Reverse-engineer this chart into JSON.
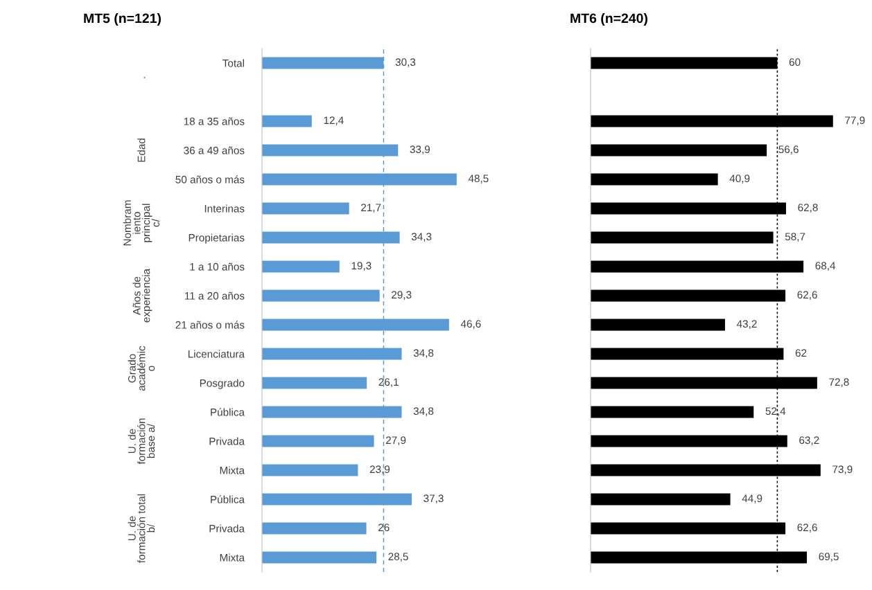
{
  "chart_data": [
    {
      "type": "bar",
      "orientation": "horizontal",
      "title": "MT5 (n=121)",
      "categories": [
        "Total",
        null,
        "18 a 35 años",
        "36 a 49 años",
        "50 años o más",
        "Interinas",
        "Propietarias",
        "1 a 10 años",
        "11 a 20 años",
        "21 años o más",
        "Licenciatura",
        "Posgrado",
        "Pública",
        "Privada",
        "Mixta",
        "Pública",
        "Privada",
        "Mixta"
      ],
      "values": [
        30.3,
        null,
        12.4,
        33.9,
        48.5,
        21.7,
        34.3,
        19.3,
        29.3,
        46.6,
        34.8,
        26.1,
        34.8,
        27.9,
        23.9,
        37.3,
        26,
        28.5
      ],
      "value_labels": [
        "30,3",
        null,
        "12,4",
        "33,9",
        "48,5",
        "21,7",
        "34,3",
        "19,3",
        "29,3",
        "46,6",
        "34,8",
        "26,1",
        "34,8",
        "27,9",
        "23,9",
        "37,3",
        "26",
        "28,5"
      ],
      "color": "#5b9bd5",
      "ref_lines": [
        {
          "axis": "x",
          "value": 30.3,
          "color": "#5b9bd5",
          "line_style": "dashed"
        }
      ],
      "annotations": [
        ".",
        "Edad",
        "Nombram\niento\nprincipal\nc/",
        "Años de\nexperiencia",
        "Grado\nacadémic\no",
        "U. de\nformación\nbase a/",
        "U. de\nformación total\nb/"
      ],
      "tick_labels": "y",
      "grid": false,
      "legend": false
    },
    {
      "type": "bar",
      "orientation": "horizontal",
      "title": "MT6 (n=240)",
      "categories": [
        null,
        null,
        null,
        null,
        null,
        null,
        null,
        null,
        null,
        null,
        null,
        null,
        null,
        null,
        null,
        null,
        null,
        null
      ],
      "values": [
        60,
        null,
        77.9,
        56.6,
        40.9,
        62.8,
        58.7,
        68.4,
        62.6,
        43.2,
        62,
        72.8,
        52.4,
        63.2,
        73.9,
        44.9,
        62.6,
        69.5
      ],
      "value_labels": [
        "60",
        null,
        "77,9",
        "56,6",
        "40,9",
        "62,8",
        "58,7",
        "68,4",
        "62,6",
        "43,2",
        "62",
        "72,8",
        "52,4",
        "63,2",
        "73,9",
        "44,9",
        "62,6",
        "69,5"
      ],
      "color": "#000000",
      "ref_lines": [
        {
          "axis": "x",
          "value": 60,
          "color": "#000000",
          "line_style": "dotted"
        }
      ],
      "tick_labels": false,
      "grid": false,
      "legend": false
    }
  ]
}
